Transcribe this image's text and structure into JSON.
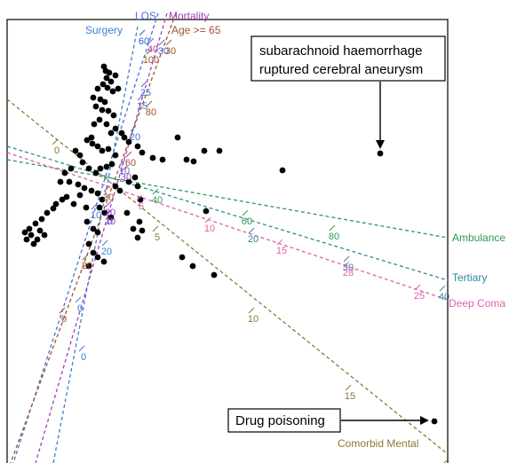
{
  "chart_data": {
    "type": "scatter",
    "title": "",
    "xlabel": "",
    "ylabel": "",
    "axes_frame": true,
    "points": [
      [
        117,
        75
      ],
      [
        119,
        80
      ],
      [
        123,
        82
      ],
      [
        120,
        88
      ],
      [
        125,
        92
      ],
      [
        130,
        85
      ],
      [
        116,
        95
      ],
      [
        121,
        99
      ],
      [
        127,
        103
      ],
      [
        133,
        100
      ],
      [
        110,
        100
      ],
      [
        105,
        110
      ],
      [
        113,
        112
      ],
      [
        118,
        115
      ],
      [
        108,
        120
      ],
      [
        115,
        124
      ],
      [
        122,
        125
      ],
      [
        128,
        130
      ],
      [
        112,
        135
      ],
      [
        106,
        140
      ],
      [
        120,
        140
      ],
      [
        130,
        145
      ],
      [
        137,
        150
      ],
      [
        125,
        150
      ],
      [
        140,
        155
      ],
      [
        98,
        158
      ],
      [
        104,
        162
      ],
      [
        110,
        165
      ],
      [
        115,
        170
      ],
      [
        122,
        168
      ],
      [
        103,
        155
      ],
      [
        130,
        175
      ],
      [
        145,
        160
      ],
      [
        155,
        165
      ],
      [
        160,
        172
      ],
      [
        172,
        178
      ],
      [
        183,
        180
      ],
      [
        200,
        155
      ],
      [
        210,
        180
      ],
      [
        218,
        182
      ],
      [
        230,
        170
      ],
      [
        247,
        170
      ],
      [
        85,
        170
      ],
      [
        90,
        175
      ],
      [
        93,
        183
      ],
      [
        100,
        190
      ],
      [
        108,
        195
      ],
      [
        113,
        190
      ],
      [
        120,
        188
      ],
      [
        126,
        185
      ],
      [
        80,
        190
      ],
      [
        73,
        195
      ],
      [
        68,
        205
      ],
      [
        78,
        205
      ],
      [
        88,
        208
      ],
      [
        95,
        212
      ],
      [
        103,
        215
      ],
      [
        110,
        218
      ],
      [
        115,
        225
      ],
      [
        90,
        220
      ],
      [
        83,
        230
      ],
      [
        97,
        234
      ],
      [
        112,
        234
      ],
      [
        118,
        240
      ],
      [
        125,
        245
      ],
      [
        130,
        210
      ],
      [
        135,
        215
      ],
      [
        145,
        205
      ],
      [
        152,
        200
      ],
      [
        155,
        210
      ],
      [
        158,
        225
      ],
      [
        60,
        235
      ],
      [
        53,
        240
      ],
      [
        47,
        247
      ],
      [
        40,
        252
      ],
      [
        33,
        258
      ],
      [
        28,
        262
      ],
      [
        35,
        265
      ],
      [
        30,
        270
      ],
      [
        45,
        260
      ],
      [
        50,
        265
      ],
      [
        38,
        275
      ],
      [
        42,
        270
      ],
      [
        63,
        230
      ],
      [
        70,
        225
      ],
      [
        75,
        222
      ],
      [
        143,
        240
      ],
      [
        157,
        250
      ],
      [
        150,
        258
      ],
      [
        155,
        268
      ],
      [
        160,
        260
      ],
      [
        98,
        250
      ],
      [
        105,
        258
      ],
      [
        110,
        262
      ],
      [
        100,
        275
      ],
      [
        105,
        285
      ],
      [
        110,
        290
      ],
      [
        117,
        295
      ],
      [
        100,
        300
      ],
      [
        205,
        290
      ],
      [
        217,
        300
      ],
      [
        241,
        310
      ],
      [
        232,
        238
      ],
      [
        318,
        192
      ],
      [
        428,
        173
      ],
      [
        489,
        475
      ]
    ],
    "biplot_axes": [
      {
        "name": "LOS",
        "color": "#4a6fd6",
        "ticks": [
          "60",
          "30",
          "25",
          "15",
          "20",
          "10",
          "0"
        ]
      },
      {
        "name": "Mortality",
        "color": "#a040c0",
        "ticks": [
          "40",
          "30",
          "20",
          "10"
        ]
      },
      {
        "name": "Surgery",
        "color": "#3a7fd0",
        "ticks": [
          "60",
          "20",
          "10",
          "0",
          "0"
        ]
      },
      {
        "name": "Age >= 65",
        "color": "#a0522d",
        "ticks": [
          "30",
          "100",
          "80",
          "60",
          "30",
          "20",
          "0"
        ]
      },
      {
        "name": "Ambulance",
        "color": "#2e9a4e",
        "ticks": [
          "40",
          "60",
          "80"
        ]
      },
      {
        "name": "Tertiary",
        "color": "#2f8a9a",
        "ticks": [
          "20",
          "30",
          "40"
        ]
      },
      {
        "name": "Deep Coma",
        "color": "#e060b0",
        "ticks": [
          "10",
          "15",
          "25",
          "28",
          "5"
        ]
      },
      {
        "name": "Comorbid Mental",
        "color": "#8a7a30",
        "ticks": [
          "0",
          "5",
          "10",
          "15",
          "2"
        ]
      }
    ],
    "annotations": [
      {
        "id": "annot-sah",
        "lines": [
          "subarachnoid haemorrhage",
          "ruptured cerebral aneurysm"
        ]
      },
      {
        "id": "annot-drug",
        "lines": [
          "Drug poisoning"
        ]
      }
    ]
  }
}
